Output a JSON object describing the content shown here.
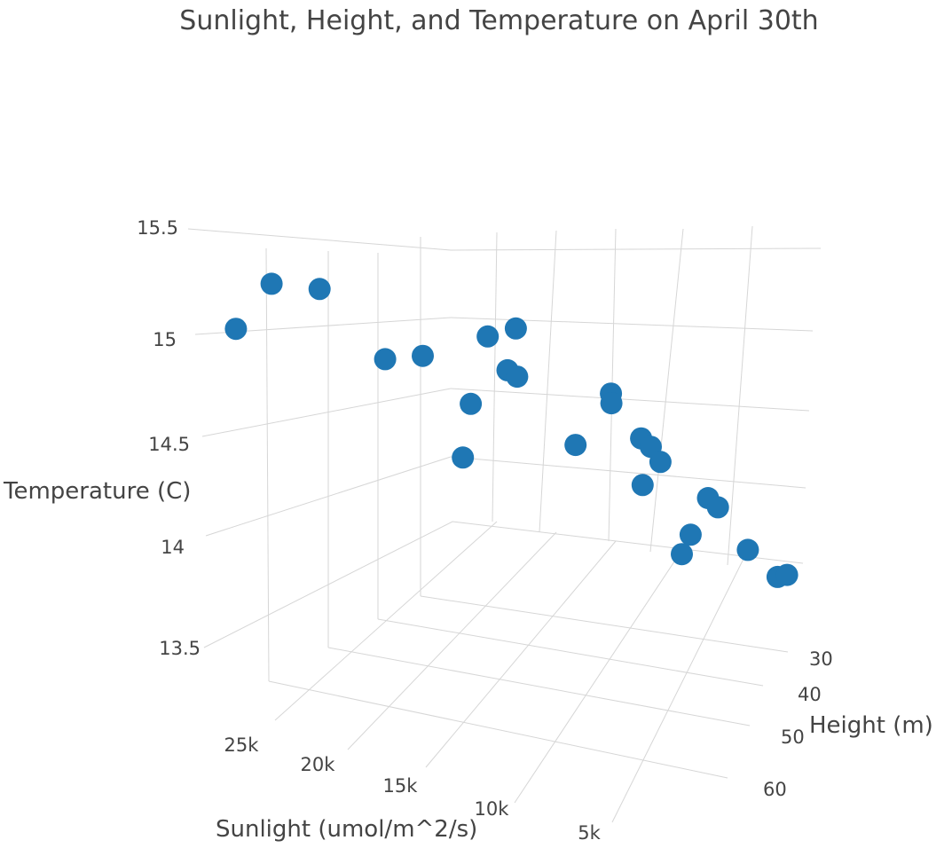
{
  "chart_data": {
    "type": "scatter",
    "dimensions": 3,
    "title": "Sunlight, Height, and Temperature on April 30th",
    "xlabel": "Sunlight (umol/m^2/s)",
    "ylabel": "Height (m)",
    "zlabel": "Temperature (C)",
    "x_ticks": [
      "5k",
      "10k",
      "15k",
      "20k",
      "25k"
    ],
    "y_ticks": [
      "30",
      "40",
      "50",
      "60"
    ],
    "z_ticks": [
      "13.5",
      "14",
      "14.5",
      "15",
      "15.5"
    ],
    "marker_color": "#1f77b4",
    "grid": true,
    "points": [
      {
        "x": 27500,
        "y": 37,
        "z": 15.55
      },
      {
        "x": 25000,
        "y": 40,
        "z": 15.5
      },
      {
        "x": 29500,
        "y": 47,
        "z": 15.3
      },
      {
        "x": 21500,
        "y": 37,
        "z": 15.05
      },
      {
        "x": 19500,
        "y": 36,
        "z": 15.05
      },
      {
        "x": 16000,
        "y": 30,
        "z": 15.12
      },
      {
        "x": 14500,
        "y": 29,
        "z": 15.15
      },
      {
        "x": 15000,
        "y": 34,
        "z": 14.92
      },
      {
        "x": 14500,
        "y": 35,
        "z": 14.88
      },
      {
        "x": 17000,
        "y": 39,
        "z": 14.75
      },
      {
        "x": 17500,
        "y": 46,
        "z": 14.45
      },
      {
        "x": 9500,
        "y": 31,
        "z": 14.72
      },
      {
        "x": 9500,
        "y": 33,
        "z": 14.67
      },
      {
        "x": 11500,
        "y": 42,
        "z": 14.47
      },
      {
        "x": 8000,
        "y": 39,
        "z": 14.47
      },
      {
        "x": 7500,
        "y": 40,
        "z": 14.42
      },
      {
        "x": 7000,
        "y": 41,
        "z": 14.33
      },
      {
        "x": 8000,
        "y": 46,
        "z": 14.22
      },
      {
        "x": 4500,
        "y": 42,
        "z": 14.1
      },
      {
        "x": 4000,
        "y": 44,
        "z": 14.05
      },
      {
        "x": 5500,
        "y": 49,
        "z": 13.92
      },
      {
        "x": 6000,
        "y": 52,
        "z": 13.82
      },
      {
        "x": 2500,
        "y": 51,
        "z": 13.82
      },
      {
        "x": 1000,
        "y": 57,
        "z": 13.68
      },
      {
        "x": 500,
        "y": 57,
        "z": 13.69
      }
    ]
  }
}
